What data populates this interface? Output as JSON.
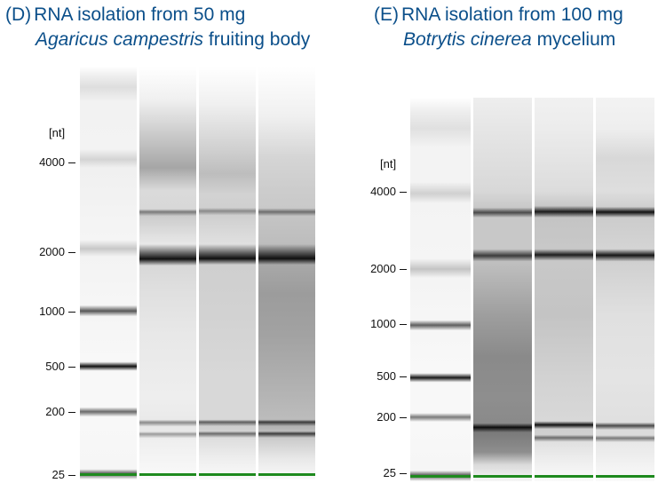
{
  "panel_d": {
    "letter": "(D)",
    "title_line1": "RNA isolation from 50 mg",
    "species": "Agaricus campestris",
    "title_line2_rest": " fruiting body",
    "unit": "[nt]",
    "ladder_labels": [
      "4000",
      "2000",
      "1000",
      "500",
      "200",
      "25"
    ]
  },
  "panel_e": {
    "letter": "(E)",
    "title_line1": "RNA isolation from 100 mg",
    "species": "Botrytis cinerea",
    "title_line2_rest": " mycelium",
    "unit": "[nt]",
    "ladder_labels": [
      "4000",
      "2000",
      "1000",
      "500",
      "200",
      "25"
    ]
  },
  "colors": {
    "title": "#0b4f8a",
    "marker": "#1e8a1e"
  }
}
